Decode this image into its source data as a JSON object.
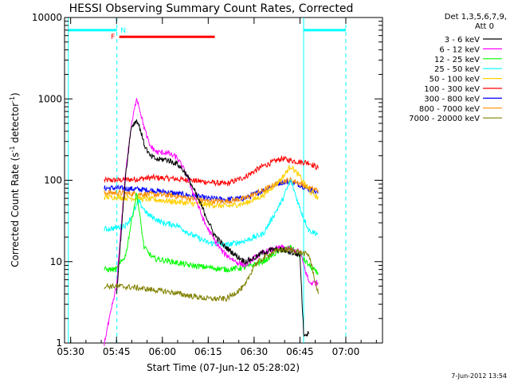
{
  "chart_data": {
    "type": "line",
    "title": "HESSI Observing Summary Count Rates, Corrected",
    "xlabel": "Start Time (07-Jun-12 05:28:02)",
    "ylabel_main": "Corrected Count Rate (s",
    "ylabel_sup1": "-1",
    "ylabel_mid": " detector",
    "ylabel_sup2": "-1",
    "ylabel_end": ")",
    "yscale": "log",
    "xlim": [
      5.4667,
      7.2
    ],
    "ylim": [
      1,
      10000
    ],
    "x_ticks": [
      {
        "value": 5.5,
        "label": "05:30"
      },
      {
        "value": 5.75,
        "label": "05:45"
      },
      {
        "value": 6.0,
        "label": "06:00"
      },
      {
        "value": 6.25,
        "label": "06:15"
      },
      {
        "value": 6.5,
        "label": "06:30"
      },
      {
        "value": 6.75,
        "label": "06:45"
      },
      {
        "value": 7.0,
        "label": "07:00"
      }
    ],
    "y_ticks": [
      {
        "value": 1,
        "label": "1"
      },
      {
        "value": 10,
        "label": "10"
      },
      {
        "value": 100,
        "label": "100"
      },
      {
        "value": 1000,
        "label": "1000"
      },
      {
        "value": 10000,
        "label": "10000"
      }
    ],
    "legend": {
      "position": "right",
      "header_line1": "Det 1,3,5,6,7,9,",
      "header_line2": "Att 0",
      "entries": [
        {
          "label": "3 - 6 keV",
          "color": "#000000"
        },
        {
          "label": "6 - 12 keV",
          "color": "#ff00ff"
        },
        {
          "label": "12 - 25 keV",
          "color": "#00ff00"
        },
        {
          "label": "25 - 50 keV",
          "color": "#00ffff"
        },
        {
          "label": "50 - 100 keV",
          "color": "#ffd000"
        },
        {
          "label": "100 - 300 keV",
          "color": "#ff0000"
        },
        {
          "label": "300 - 800 keV",
          "color": "#0000ff"
        },
        {
          "label": "800 - 7000 keV",
          "color": "#ff8c00"
        },
        {
          "label": "7000 - 20000 keV",
          "color": "#808000"
        }
      ]
    },
    "series": [
      {
        "color": "#ff0000",
        "x": [
          5.683,
          5.75,
          5.85,
          5.95,
          6.05,
          6.15,
          6.25,
          6.35,
          6.45,
          6.55,
          6.65,
          6.7,
          6.75,
          6.8,
          6.85
        ],
        "y": [
          100,
          100,
          103,
          108,
          105,
          100,
          95,
          90,
          110,
          150,
          185,
          175,
          168,
          165,
          140
        ]
      },
      {
        "color": "#0000ff",
        "x": [
          5.683,
          5.75,
          5.85,
          5.95,
          6.05,
          6.15,
          6.25,
          6.35,
          6.45,
          6.55,
          6.65,
          6.7,
          6.75,
          6.8,
          6.85
        ],
        "y": [
          80,
          80,
          78,
          75,
          70,
          65,
          60,
          58,
          60,
          75,
          95,
          95,
          88,
          78,
          70
        ]
      },
      {
        "color": "#ff8c00",
        "x": [
          5.683,
          5.75,
          5.85,
          5.95,
          6.05,
          6.15,
          6.25,
          6.35,
          6.45,
          6.55,
          6.65,
          6.7,
          6.75,
          6.8,
          6.85
        ],
        "y": [
          70,
          70,
          68,
          67,
          65,
          60,
          55,
          55,
          60,
          75,
          98,
          100,
          92,
          80,
          75
        ]
      },
      {
        "color": "#ffd000",
        "x": [
          5.683,
          5.75,
          5.85,
          5.95,
          6.05,
          6.15,
          6.25,
          6.35,
          6.45,
          6.55,
          6.65,
          6.7,
          6.75,
          6.8,
          6.85
        ],
        "y": [
          62,
          62,
          60,
          58,
          55,
          52,
          50,
          48,
          52,
          65,
          105,
          150,
          110,
          75,
          60
        ]
      },
      {
        "color": "#00ffff",
        "x": [
          5.683,
          5.75,
          5.8,
          5.83,
          5.87,
          5.92,
          6.0,
          6.08,
          6.15,
          6.25,
          6.35,
          6.45,
          6.55,
          6.65,
          6.7,
          6.75,
          6.8,
          6.85
        ],
        "y": [
          25,
          26,
          28,
          35,
          55,
          38,
          30,
          28,
          22,
          17,
          16,
          18,
          22,
          55,
          100,
          45,
          24,
          22
        ]
      },
      {
        "color": "#00ff00",
        "x": [
          5.683,
          5.75,
          5.8,
          5.83,
          5.86,
          5.9,
          5.95,
          6.05,
          6.15,
          6.25,
          6.35,
          6.45,
          6.55,
          6.6,
          6.65,
          6.7,
          6.75,
          6.8,
          6.85
        ],
        "y": [
          8,
          8,
          12,
          30,
          70,
          15,
          11,
          10,
          9,
          8.5,
          8,
          8.5,
          10,
          12,
          14,
          15,
          12,
          9,
          7
        ]
      },
      {
        "color": "#ff00ff",
        "x": [
          5.683,
          5.75,
          5.8,
          5.83,
          5.86,
          5.88,
          5.9,
          5.93,
          5.97,
          6.02,
          6.08,
          6.13,
          6.18,
          6.23,
          6.28,
          6.33,
          6.4,
          6.45,
          6.5,
          6.55,
          6.6,
          6.65,
          6.7,
          6.75,
          6.8,
          6.85
        ],
        "y": [
          1,
          5,
          130,
          450,
          1050,
          700,
          450,
          270,
          220,
          220,
          190,
          120,
          60,
          30,
          19,
          13,
          10,
          9,
          11,
          13,
          14,
          15,
          14,
          13,
          5.5,
          5.5
        ]
      },
      {
        "color": "#000000",
        "x": [
          5.75,
          5.8,
          5.83,
          5.86,
          5.88,
          5.9,
          5.93,
          5.97,
          6.02,
          6.08,
          6.13,
          6.18,
          6.23,
          6.28,
          6.33,
          6.4,
          6.45,
          6.5,
          6.55,
          6.6,
          6.65,
          6.7,
          6.75,
          6.77,
          6.8
        ],
        "y": [
          4,
          120,
          450,
          550,
          420,
          280,
          200,
          180,
          180,
          160,
          120,
          70,
          40,
          22,
          16,
          12,
          10,
          11,
          13,
          14,
          14,
          13,
          12,
          1.3,
          1.3
        ]
      },
      {
        "color": "#808000",
        "x": [
          5.683,
          5.75,
          5.85,
          5.95,
          6.05,
          6.15,
          6.25,
          6.35,
          6.45,
          6.5,
          6.55,
          6.6,
          6.65,
          6.7,
          6.75,
          6.8,
          6.85
        ],
        "y": [
          5,
          5,
          4.8,
          4.5,
          4.2,
          3.8,
          3.5,
          3.5,
          5,
          9,
          11,
          13,
          14,
          14,
          13,
          12,
          4
        ]
      }
    ],
    "bars": [
      {
        "name": "N",
        "color": "#00ffff",
        "y": 7000,
        "segments": [
          [
            5.4875,
            5.752
          ],
          [
            6.77,
            7.0
          ]
        ]
      },
      {
        "name": "F",
        "color": "#ff0000",
        "y": 5800,
        "segments": [
          [
            5.765,
            6.286
          ]
        ]
      }
    ],
    "boundary_lines": [
      {
        "color": "#00ffff",
        "x": 5.4875,
        "dashed": false
      },
      {
        "color": "#00ffff",
        "x": 5.752,
        "dashed": true
      },
      {
        "color": "#00ffff",
        "x": 6.77,
        "dashed": false
      },
      {
        "color": "#00ffff",
        "x": 7.0,
        "dashed": true
      }
    ],
    "timestamp": "7-Jun-2012 13:54"
  }
}
